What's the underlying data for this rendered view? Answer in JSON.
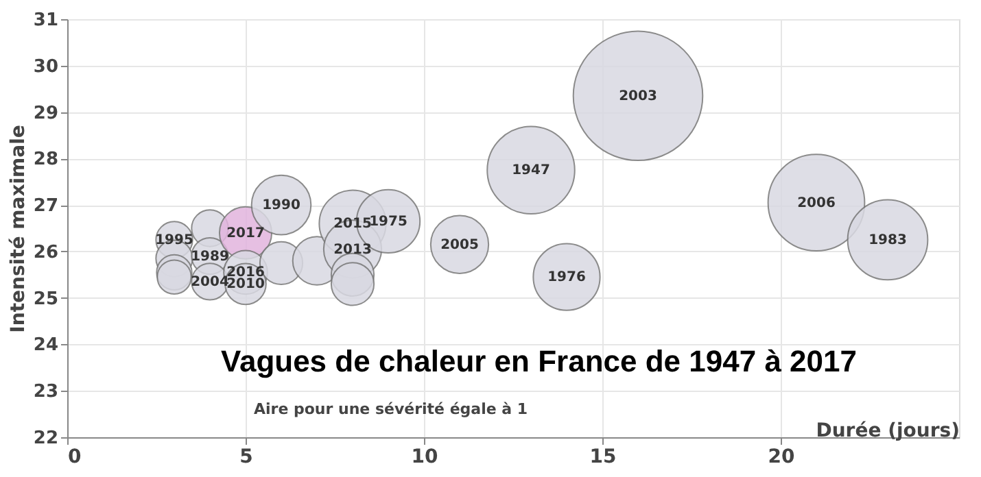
{
  "chart_data": {
    "type": "bubble",
    "title": "Vagues de chaleur en France de 1947 à 2017",
    "xlabel": "Durée (jours)",
    "ylabel": "Intensité maximale",
    "x": [
      3,
      3,
      3,
      3,
      4,
      4,
      4,
      5,
      5,
      5,
      6,
      6,
      7,
      8,
      8,
      8,
      8,
      9,
      11,
      13,
      14,
      16,
      21,
      23
    ],
    "values": [
      26.25,
      25.85,
      25.55,
      25.45,
      26.5,
      25.9,
      25.35,
      26.4,
      25.55,
      25.3,
      27.0,
      25.75,
      25.8,
      26.6,
      26.05,
      25.5,
      25.3,
      26.65,
      26.15,
      27.75,
      25.45,
      29.35,
      27.05,
      26.25
    ],
    "sizes": [
      0.08,
      0.08,
      0.074,
      0.069,
      0.08,
      0.08,
      0.08,
      0.163,
      0.114,
      0.1,
      0.211,
      0.109,
      0.14,
      0.266,
      0.2,
      0.109,
      0.109,
      0.24,
      0.2,
      0.457,
      0.266,
      1,
      0.557,
      0.383
    ],
    "colors": [
      "#d9d9e2",
      "#d9d9e2",
      "#d9d9e2",
      "#d9d9e2",
      "#d9d9e2",
      "#d9d9e2",
      "#d9d9e2",
      "#e2b4de",
      "#d9d9e2",
      "#d9d9e2",
      "#d9d9e2",
      "#d9d9e2",
      "#d9d9e2",
      "#d9d9e2",
      "#d9d9e2",
      "#d9d9e2",
      "#d9d9e2",
      "#d9d9e2",
      "#d9d9e2",
      "#d9d9e2",
      "#d9d9e2",
      "#d9d9e2",
      "#d9d9e2",
      "#d9d9e2"
    ],
    "annotations": [
      {
        "text": "1995",
        "x": 3,
        "y": 26.25
      },
      {
        "text": "1989",
        "x": 4,
        "y": 25.9
      },
      {
        "text": "2004",
        "x": 4,
        "y": 25.35
      },
      {
        "text": "2017",
        "x": 5,
        "y": 26.4
      },
      {
        "text": "2016",
        "x": 5,
        "y": 25.55
      },
      {
        "text": "2010",
        "x": 5,
        "y": 25.3
      },
      {
        "text": "1990",
        "x": 6,
        "y": 27.0
      },
      {
        "text": "2015",
        "x": 8,
        "y": 26.6
      },
      {
        "text": "2013",
        "x": 8,
        "y": 26.05
      },
      {
        "text": "1975",
        "x": 9,
        "y": 26.65
      },
      {
        "text": "2005",
        "x": 11,
        "y": 26.15
      },
      {
        "text": "1947",
        "x": 13,
        "y": 27.75
      },
      {
        "text": "1976",
        "x": 14,
        "y": 25.45
      },
      {
        "text": "2003",
        "x": 16,
        "y": 29.35
      },
      {
        "text": "2006",
        "x": 21,
        "y": 27.05
      },
      {
        "text": "1983",
        "x": 23,
        "y": 26.25
      },
      "Aire pour une sévérité égale à 1"
    ],
    "xlim": [
      0,
      25
    ],
    "xticks": [
      0,
      5,
      10,
      15,
      20
    ],
    "ylim": [
      22,
      31
    ],
    "yticks": [
      22,
      23,
      24,
      25,
      26,
      27,
      28,
      29,
      30,
      31
    ],
    "grid": true
  }
}
